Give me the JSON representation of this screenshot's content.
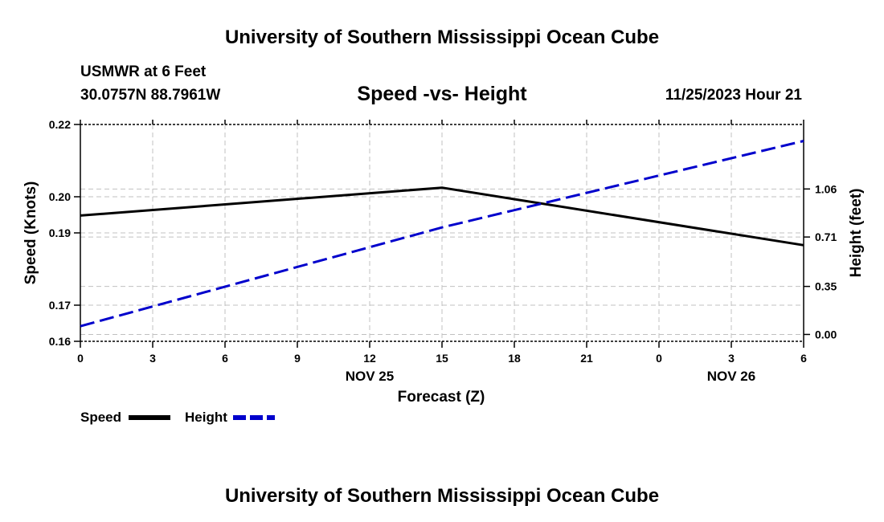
{
  "title_top": "University of Southern Mississippi Ocean Cube",
  "title_bottom": "University of Southern Mississippi Ocean Cube",
  "station": "USMWR at 6 Feet",
  "coords": "30.0757N  88.7961W",
  "datetime": "11/25/2023 Hour 21",
  "legend": {
    "speed": "Speed",
    "height": "Height"
  },
  "colors": {
    "speed": "#000000",
    "height": "#0000cc",
    "grid": "#c0c0c0"
  },
  "chart_data": {
    "type": "line",
    "title": "Speed -vs- Height",
    "xlabel": "Forecast (Z)",
    "ylabel": "Speed (Knots)",
    "y2label": "Height (feet)",
    "x": [
      0,
      15,
      30
    ],
    "x_tick_labels": [
      "0",
      "3",
      "6",
      "9",
      "12",
      "15",
      "18",
      "21",
      "0",
      "3",
      "6"
    ],
    "date_labels": [
      {
        "text": "NOV 25",
        "tick": 12
      },
      {
        "text": "NOV 26",
        "tick": 27
      }
    ],
    "ylim": [
      0.16,
      0.22
    ],
    "y_ticks": [
      0.16,
      0.17,
      0.19,
      0.2,
      0.22
    ],
    "y_tick_labels": [
      "0.16",
      "0.17",
      "0.19",
      "0.20",
      "0.22"
    ],
    "y2lim": [
      -0.05,
      1.53
    ],
    "y2_ticks": [
      0.0,
      0.35,
      0.71,
      1.06
    ],
    "y2_tick_labels": [
      "0.00",
      "0.35",
      "0.71",
      "1.06"
    ],
    "grid": true,
    "legend_position": "bottom-left",
    "series": [
      {
        "name": "Speed",
        "axis": "left",
        "style": "solid",
        "x": [
          0,
          15,
          30
        ],
        "values": [
          0.1948,
          0.2025,
          0.1866
        ]
      },
      {
        "name": "Height",
        "axis": "right",
        "style": "dashed",
        "x": [
          0,
          15,
          30
        ],
        "values": [
          0.06,
          0.78,
          1.41
        ]
      }
    ]
  }
}
